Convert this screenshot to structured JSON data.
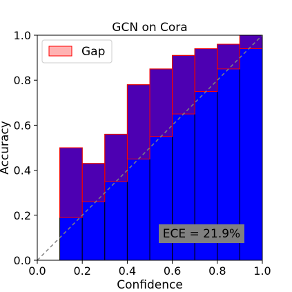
{
  "chart_data": {
    "type": "bar",
    "title": "GCN on Cora",
    "xlabel": "Confidence",
    "ylabel": "Accuracy",
    "xlim": [
      0.0,
      1.0
    ],
    "ylim": [
      0.0,
      1.0
    ],
    "xticks": [
      "0.0",
      "0.2",
      "0.4",
      "0.6",
      "0.8",
      "1.0"
    ],
    "yticks": [
      "0.0",
      "0.2",
      "0.4",
      "0.6",
      "0.8",
      "1.0"
    ],
    "grid": false,
    "legend": {
      "position": "top-left",
      "entries": [
        "Gap"
      ]
    },
    "bins": [
      {
        "x0": 0.1,
        "x1": 0.2,
        "accuracy": 0.5,
        "confidence": 0.19
      },
      {
        "x0": 0.2,
        "x1": 0.3,
        "accuracy": 0.43,
        "confidence": 0.26
      },
      {
        "x0": 0.3,
        "x1": 0.4,
        "accuracy": 0.56,
        "confidence": 0.35
      },
      {
        "x0": 0.4,
        "x1": 0.5,
        "accuracy": 0.78,
        "confidence": 0.45
      },
      {
        "x0": 0.5,
        "x1": 0.6,
        "accuracy": 0.85,
        "confidence": 0.55
      },
      {
        "x0": 0.6,
        "x1": 0.7,
        "accuracy": 0.91,
        "confidence": 0.65
      },
      {
        "x0": 0.7,
        "x1": 0.8,
        "accuracy": 0.94,
        "confidence": 0.75
      },
      {
        "x0": 0.8,
        "x1": 0.9,
        "accuracy": 0.96,
        "confidence": 0.85
      },
      {
        "x0": 0.9,
        "x1": 1.0,
        "accuracy": 1.0,
        "confidence": 0.94
      }
    ],
    "reference_line": {
      "from": [
        0,
        0
      ],
      "to": [
        1,
        1
      ],
      "style": "dashed",
      "color": "#808080"
    },
    "annotation": "ECE = 21.9%",
    "colors": {
      "accuracy_bar": "#0000ff",
      "gap_fill": "#ff0000",
      "gap_edge": "#ff0000",
      "annotation_box": "#808080"
    }
  }
}
